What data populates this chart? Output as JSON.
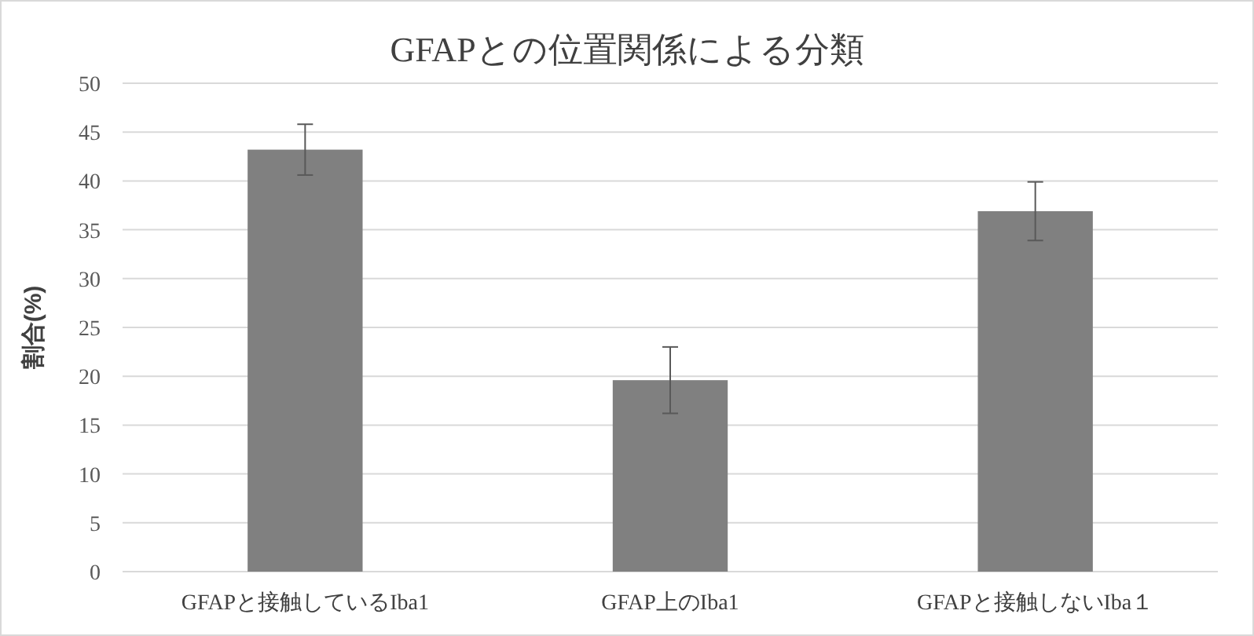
{
  "chart_data": {
    "type": "bar",
    "title": "GFAPとの位置関係による分類",
    "ylabel": "割合(%)",
    "categories": [
      "GFAPと接触しているIba1",
      "GFAP上のIba1",
      "GFAPと接触しないIba１"
    ],
    "values": [
      43.2,
      19.6,
      36.9
    ],
    "errors": [
      2.6,
      3.4,
      3.0
    ],
    "color": "#808080",
    "ylim": [
      0,
      50
    ],
    "yticks": [
      0,
      5,
      10,
      15,
      20,
      25,
      30,
      35,
      40,
      45,
      50
    ],
    "grid": "y"
  }
}
